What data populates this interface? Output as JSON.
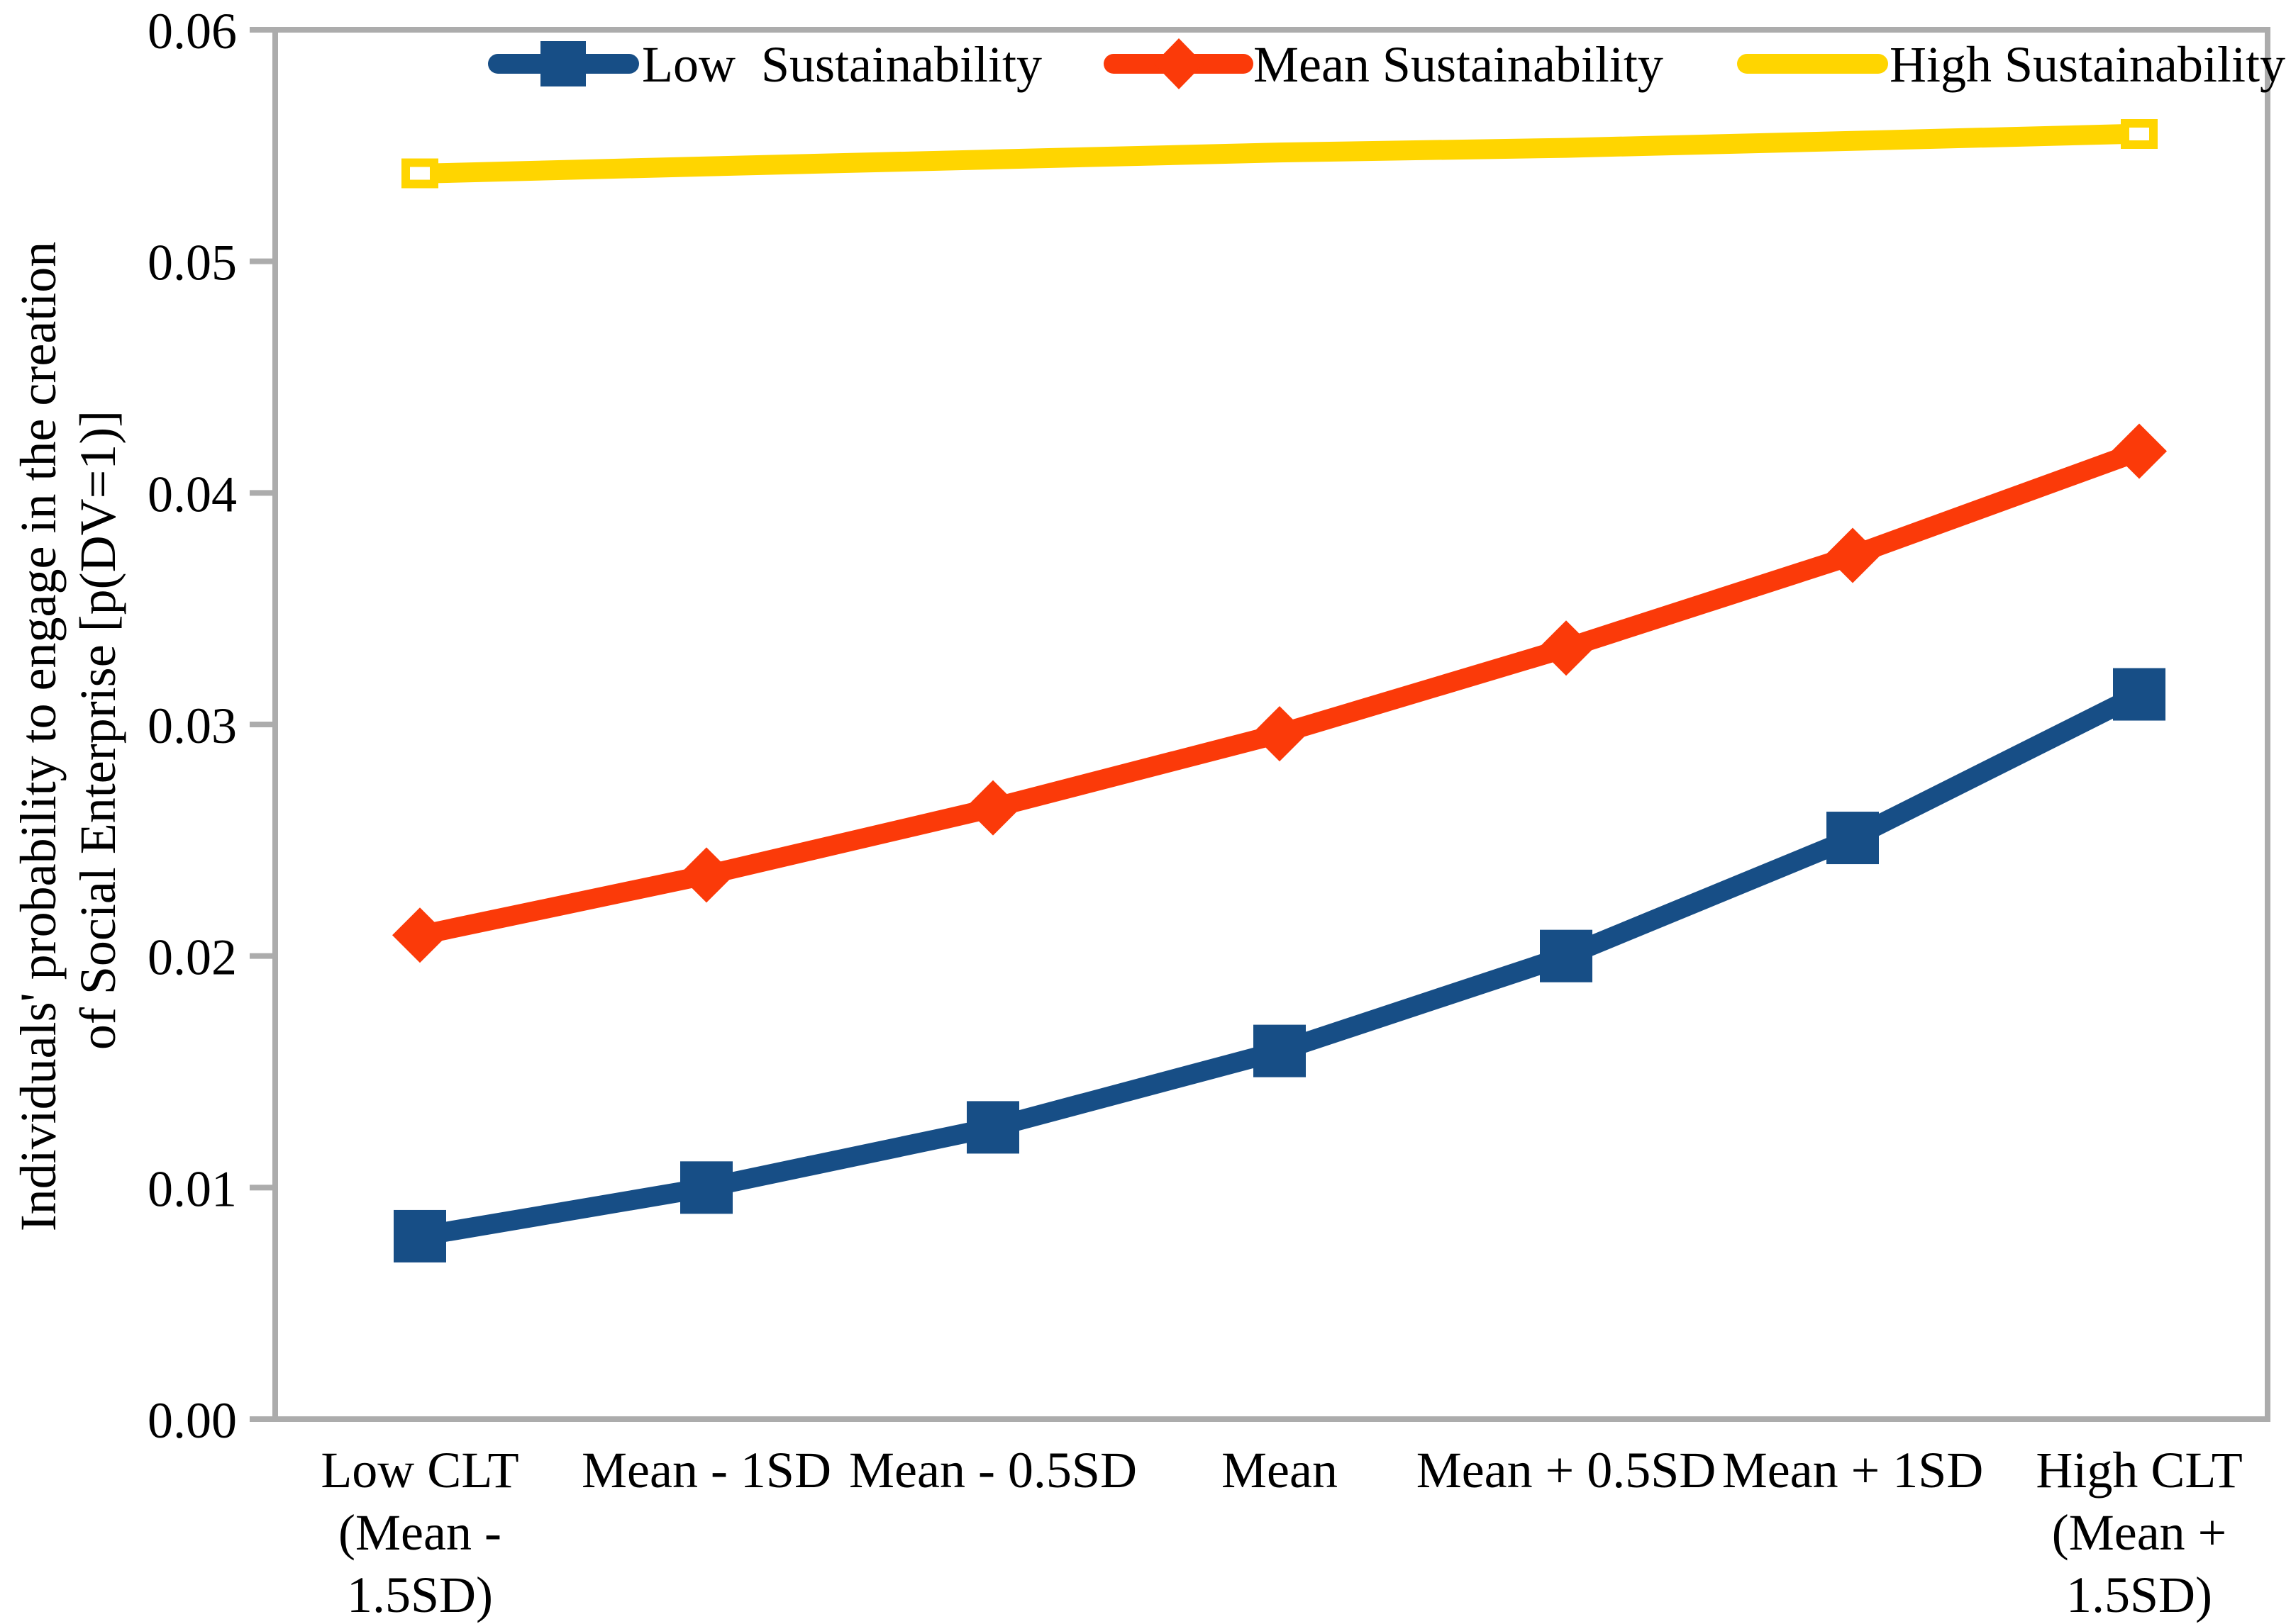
{
  "chart_data": {
    "type": "line",
    "title": "",
    "xlabel": "",
    "ylabel_lines": [
      "Individuals' probability to engage in the creation",
      "of Social Enterprise [p(DV=1)]"
    ],
    "ylim": [
      0,
      0.06
    ],
    "ytick_labels": [
      "0.00",
      "0.01",
      "0.02",
      "0.03",
      "0.04",
      "0.05",
      "0.06"
    ],
    "grid": false,
    "legend_position": "top-inside",
    "axis_color": "#ACACAC",
    "background_color": "#FFFFFF",
    "text_color": "#000000",
    "categories": [
      [
        "Low CLT",
        "(Mean -",
        "1.5SD)"
      ],
      [
        "Mean - 1SD"
      ],
      [
        "Mean - 0.5SD"
      ],
      [
        "Mean"
      ],
      [
        "Mean + 0.5SD"
      ],
      [
        "Mean + 1SD"
      ],
      [
        "High CLT",
        "(Mean +",
        "1.5SD)"
      ]
    ],
    "series": [
      {
        "name": "Low  Sustainability",
        "color": "#174E86",
        "marker": "square",
        "values": [
          0.0079,
          0.01,
          0.0126,
          0.0159,
          0.02,
          0.0251,
          0.0313
        ]
      },
      {
        "name": "Mean Sustainability",
        "color": "#FB3A09",
        "marker": "diamond",
        "values": [
          0.0209,
          0.0235,
          0.0264,
          0.0296,
          0.0333,
          0.0373,
          0.0418
        ]
      },
      {
        "name": "High Sustainability",
        "color": "#FFD500",
        "marker": "open-square",
        "values": [
          0.0538,
          0.0541,
          0.0544,
          0.0547,
          0.0549,
          0.0552,
          0.0555
        ]
      }
    ]
  }
}
